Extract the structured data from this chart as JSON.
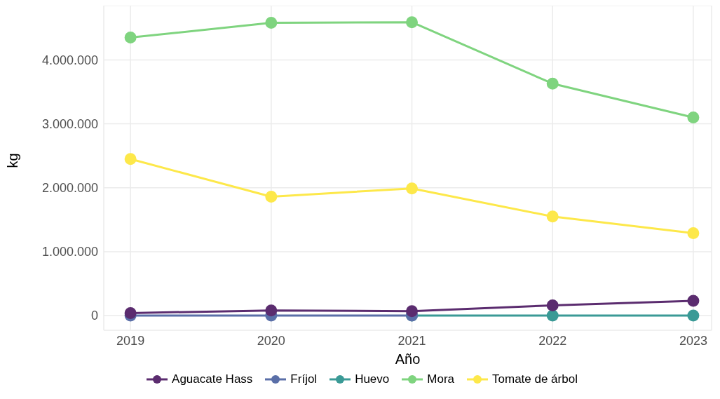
{
  "chart_data": {
    "type": "line",
    "xlabel": "Año",
    "ylabel": "kg",
    "x": [
      2019,
      2020,
      2021,
      2022,
      2023
    ],
    "series": [
      {
        "name": "Aguacate Hass",
        "color": "#5b2c6f",
        "values": [
          40000,
          80000,
          70000,
          160000,
          230000
        ]
      },
      {
        "name": "Fríjol",
        "color": "#5a6fa8",
        "values": [
          0,
          0,
          0,
          null,
          null
        ]
      },
      {
        "name": "Huevo",
        "color": "#3a9a96",
        "values": [
          null,
          null,
          0,
          0,
          0
        ]
      },
      {
        "name": "Mora",
        "color": "#7fd47f",
        "values": [
          4350000,
          4580000,
          4590000,
          3630000,
          3100000
        ]
      },
      {
        "name": "Tomate de árbol",
        "color": "#fde84a",
        "values": [
          2450000,
          1860000,
          1990000,
          1550000,
          1290000
        ]
      }
    ],
    "xlim": [
      2018.81,
      2023.13
    ],
    "xticks": [
      2019,
      2020,
      2021,
      2022,
      2023
    ],
    "ylim": [
      -230000,
      4850000
    ],
    "yticks": [
      0,
      {
        "value": 1000000,
        "label": "1.000.000"
      },
      {
        "value": 2000000,
        "label": "2.000.000"
      },
      {
        "value": 3000000,
        "label": "3.000.000"
      },
      {
        "value": 4000000,
        "label": "4.000.000"
      }
    ],
    "grid": true,
    "legend": "bottom",
    "marker": "circle",
    "line_style": "solid"
  }
}
